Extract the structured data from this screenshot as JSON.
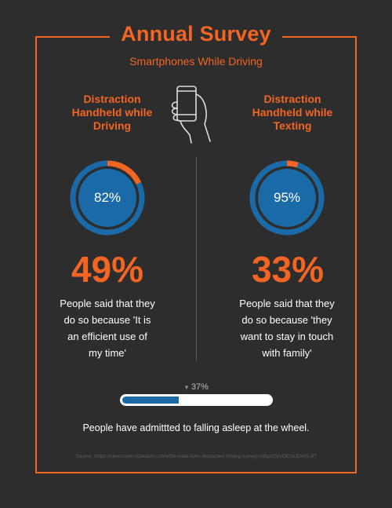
{
  "header": {
    "title": "Annual Survey",
    "subtitle": "Smartphones While Driving"
  },
  "colors": {
    "accent": "#f26522",
    "gauge_ring": "#1b6aa8",
    "gauge_fill": "#1b6aa8",
    "background": "#2d2d2d"
  },
  "icons": {
    "center": "hand-holding-phone-icon"
  },
  "left": {
    "heading_lines": [
      "Distraction",
      "Handheld while",
      "Driving"
    ],
    "gauge_value": 82,
    "gauge_label": "82%",
    "big_percent": "49%",
    "description_lines": [
      "People said that they",
      "do so because 'It is",
      "an efficient use of",
      "my time'"
    ]
  },
  "right": {
    "heading_lines": [
      "Distraction",
      "Handheld while",
      "Texting"
    ],
    "gauge_value": 95,
    "gauge_label": "95%",
    "big_percent": "33%",
    "description_lines": [
      "People said that they",
      "do so because 'they",
      "want to stay in touch",
      "with family'"
    ]
  },
  "progress": {
    "value": 37,
    "label": "37%"
  },
  "footer": {
    "statement": "People have admittted to falling asleep at the wheel.",
    "source": "Source: https://newsroom.statefarm.com/8th-state-farm-distracted-driving-survey/#35pGSjVOEtsLEmk5.97"
  }
}
